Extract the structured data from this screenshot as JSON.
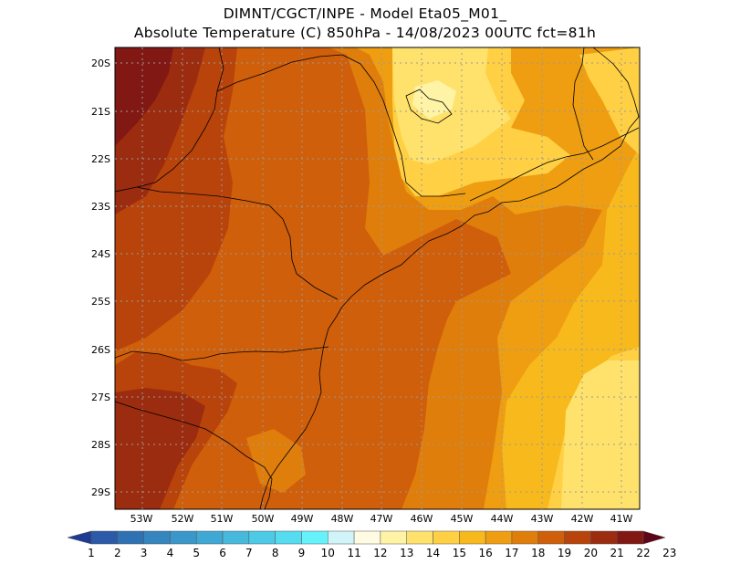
{
  "header": {
    "line1": "DIMNT/CGCT/INPE -  Model Eta05_M01_",
    "line2": "Absolute Temperature (C) 850hPa -  14/08/2023 00UTC fct=81h"
  },
  "axes": {
    "lat_labels": [
      "20S",
      "21S",
      "22S",
      "23S",
      "24S",
      "25S",
      "26S",
      "27S",
      "28S",
      "29S"
    ],
    "lon_labels": [
      "53W",
      "52W",
      "51W",
      "50W",
      "49W",
      "48W",
      "47W",
      "46W",
      "45W",
      "44W",
      "43W",
      "42W",
      "41W"
    ]
  },
  "colorbar": {
    "labels": [
      "1",
      "2",
      "3",
      "4",
      "5",
      "6",
      "7",
      "8",
      "9",
      "10",
      "11",
      "12",
      "13",
      "14",
      "15",
      "16",
      "17",
      "18",
      "19",
      "20",
      "21",
      "22",
      "23"
    ],
    "colors": [
      "#1f3a93",
      "#2a5aa8",
      "#2f72b4",
      "#3585bf",
      "#3a97c9",
      "#40a8d4",
      "#46b9dc",
      "#4ccae6",
      "#55dcf0",
      "#65f2fb",
      "#d0f4f8",
      "#fffbe3",
      "#fff4a5",
      "#ffe26c",
      "#ffd044",
      "#f7b91c",
      "#ee9e10",
      "#e07e0c",
      "#cf5f0a",
      "#b8440b",
      "#9c2c0f",
      "#821813",
      "#5e0617"
    ]
  },
  "map_colors": {
    "t22": "#821813",
    "t21": "#9c2c0f",
    "t20": "#b8440b",
    "t19": "#cf5f0a",
    "t18": "#e07e0c",
    "t17": "#ee9e10",
    "t16": "#f7b91c",
    "t15": "#ffd044",
    "t14": "#ffe26c",
    "t13": "#fff4a5"
  }
}
